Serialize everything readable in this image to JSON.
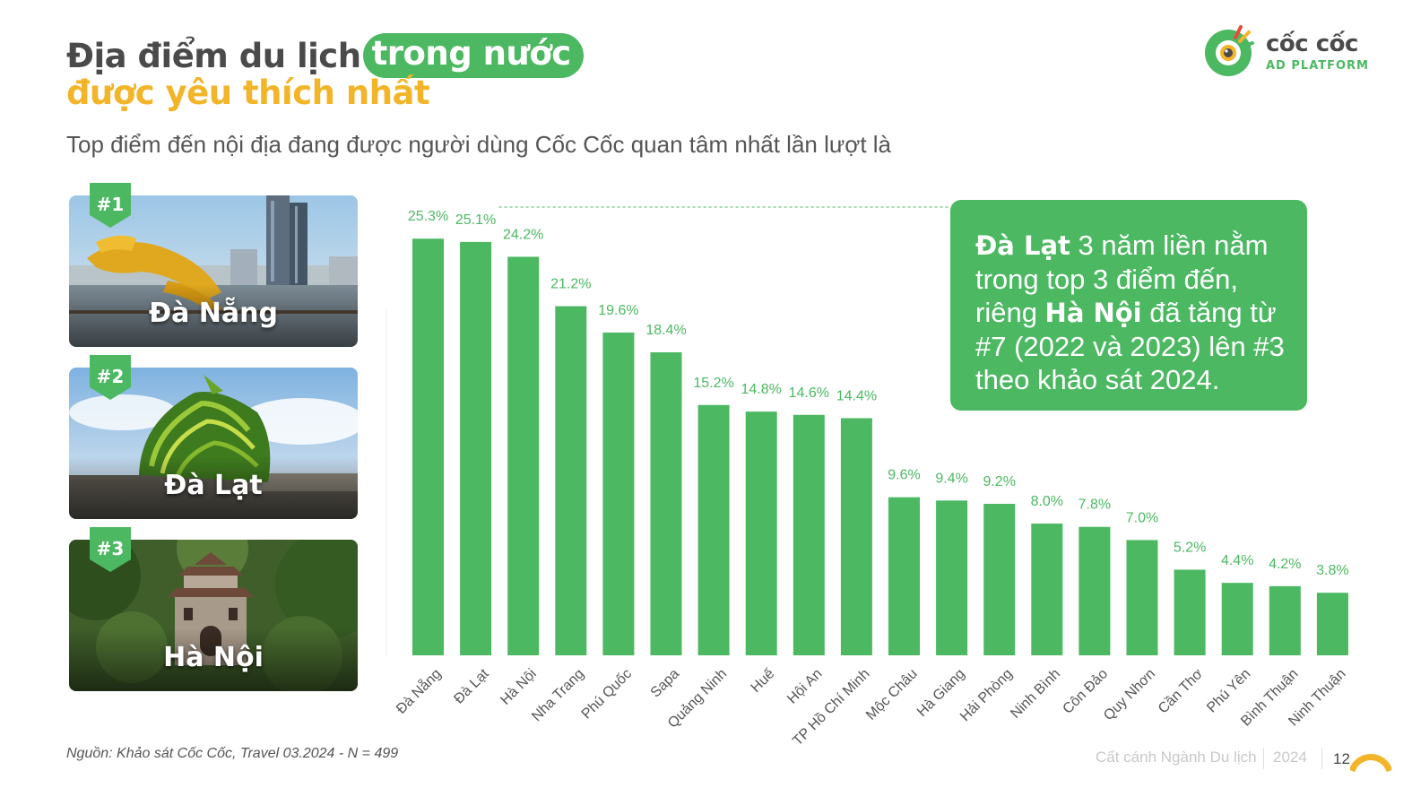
{
  "header": {
    "title_part1": "Địa điểm du lịch",
    "title_highlight": "trong nước",
    "title_line2": "được yêu thích nhất",
    "subtitle": "Top điểm đến nội địa đang được người dùng Cốc Cốc quan tâm nhất lần lượt là"
  },
  "logo": {
    "name": "cốc cốc",
    "tagline": "AD PLATFORM"
  },
  "top_destinations": [
    {
      "rank": "#1",
      "city": "Đà Nẵng"
    },
    {
      "rank": "#2",
      "city": "Đà Lạt"
    },
    {
      "rank": "#3",
      "city": "Hà Nội"
    }
  ],
  "callout": {
    "bold1": "Đà Lạt",
    "text1": " 3 năm liền nằm trong top 3 điểm đến, riêng ",
    "bold2": "Hà Nội",
    "text2": " đã tăng từ #7 (2022 và 2023) lên #3 theo khảo sát 2024."
  },
  "chart_data": {
    "type": "bar",
    "categories": [
      "Đà Nẵng",
      "Đà Lạt",
      "Hà Nội",
      "Nha Trang",
      "Phú Quốc",
      "Sapa",
      "Quảng Ninh",
      "Huế",
      "Hội An",
      "TP Hồ Chí Minh",
      "Mộc Châu",
      "Hà Giang",
      "Hải Phòng",
      "Ninh Bình",
      "Côn Đảo",
      "Quy Nhơn",
      "Cần Thơ",
      "Phú Yên",
      "Bình Thuận",
      "Ninh Thuận"
    ],
    "values": [
      25.3,
      25.1,
      24.2,
      21.2,
      19.6,
      18.4,
      15.2,
      14.8,
      14.6,
      14.4,
      9.6,
      9.4,
      9.2,
      8.0,
      7.8,
      7.0,
      5.2,
      4.4,
      4.2,
      3.8
    ],
    "value_labels": [
      "25.3%",
      "25.1%",
      "24.2%",
      "21.2%",
      "19.6%",
      "18.4%",
      "15.2%",
      "14.8%",
      "14.6%",
      "14.4%",
      "9.6%",
      "9.4%",
      "9.2%",
      "8.0%",
      "7.8%",
      "7.0%",
      "5.2%",
      "4.4%",
      "4.2%",
      "3.8%"
    ],
    "ylim": [
      0,
      27
    ],
    "bar_color": "#4cb862",
    "label_color": "#4cb862",
    "grid": false,
    "legend": false
  },
  "footer": {
    "source": "Nguồn:  Khảo sát Cốc Cốc, Travel 03.2024 - N = 499",
    "report_name": "Cất cánh Ngành Du lịch",
    "year": "2024",
    "page": "12"
  },
  "colors": {
    "brand_green": "#4cb862",
    "brand_yellow": "#f2b52a",
    "text_dark": "#4a4a4a"
  }
}
